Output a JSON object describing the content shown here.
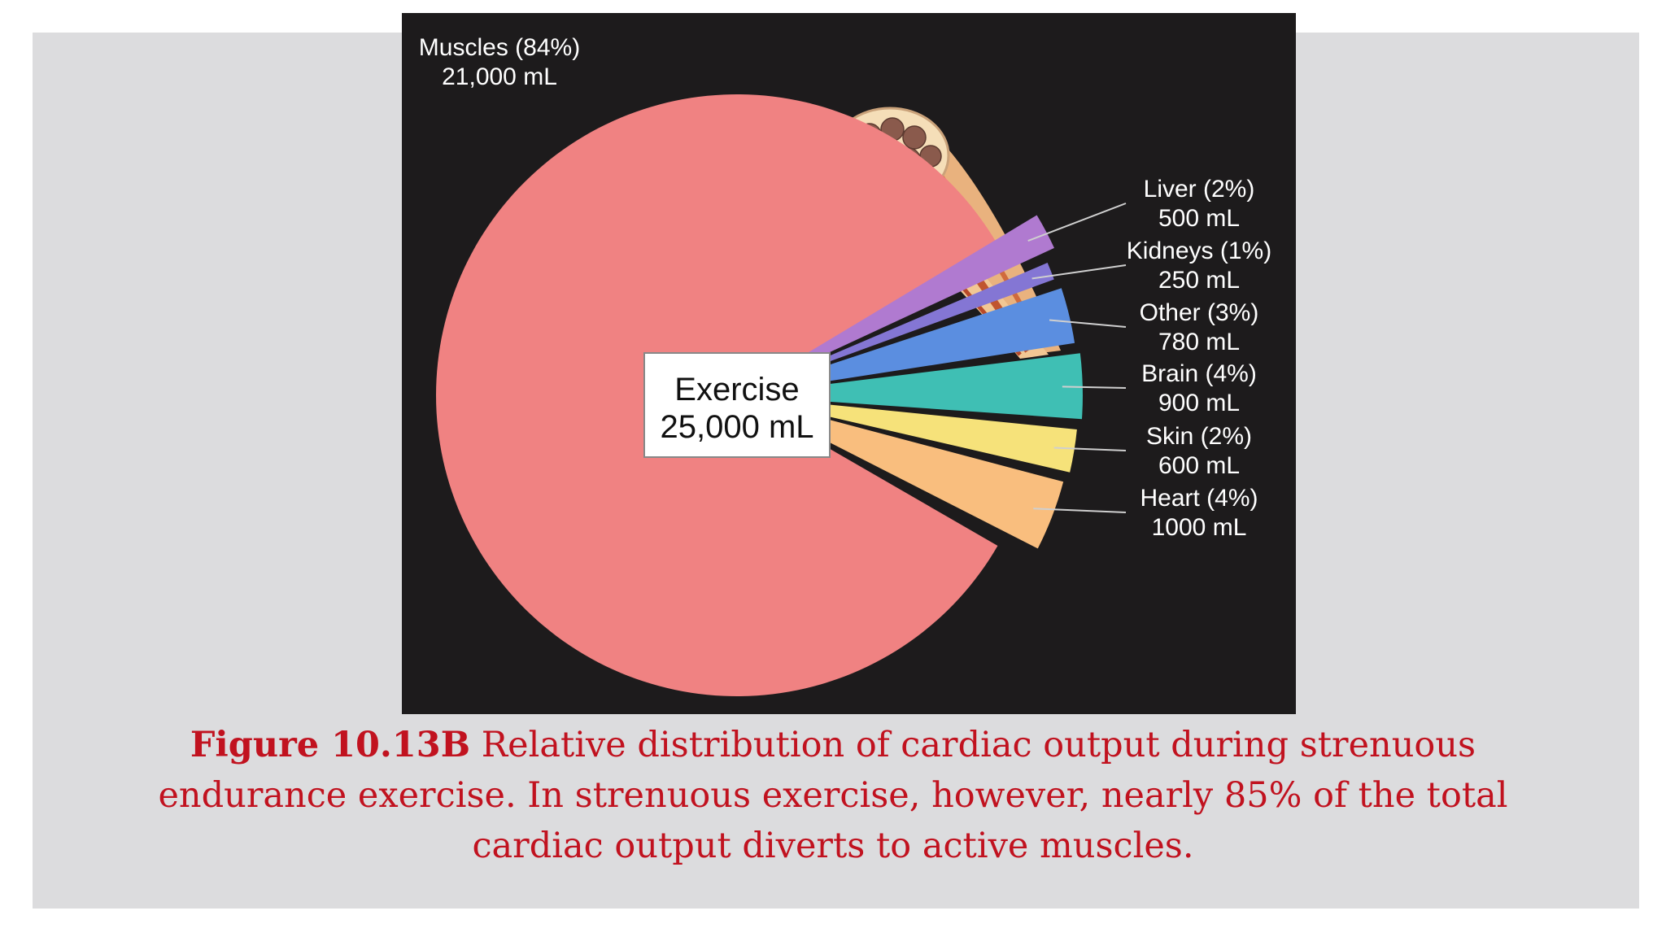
{
  "caption": {
    "label": "Figure 10.13B",
    "text": " Relative distribution of cardiac output during strenuous endurance exercise. In strenuous exercise, however, nearly 85% of the total cardiac output diverts to active muscles."
  },
  "chart_data": {
    "type": "pie",
    "title": "",
    "center_label": [
      "Exercise",
      "25,000 mL"
    ],
    "total": 25000,
    "unit": "mL",
    "slices": [
      {
        "name": "Muscles",
        "percent": "84%",
        "value": 21000,
        "value_label": "21,000 mL",
        "color": "#f08282"
      },
      {
        "name": "Liver",
        "percent": "2%",
        "value": 500,
        "value_label": "500 mL",
        "color": "#b07ad0"
      },
      {
        "name": "Kidneys",
        "percent": "1%",
        "value": 250,
        "value_label": "250 mL",
        "color": "#8476d4"
      },
      {
        "name": "Other",
        "percent": "3%",
        "value": 780,
        "value_label": "780 mL",
        "color": "#5b8ee0"
      },
      {
        "name": "Brain",
        "percent": "4%",
        "value": 900,
        "value_label": "900 mL",
        "color": "#3fbfb4"
      },
      {
        "name": "Skin",
        "percent": "2%",
        "value": 600,
        "value_label": "600 mL",
        "color": "#f6e27a"
      },
      {
        "name": "Heart",
        "percent": "4%",
        "value": 1000,
        "value_label": "1000 mL",
        "color": "#f9be7e"
      }
    ],
    "background": "#1d1b1c",
    "label_color": "#ffffff"
  }
}
